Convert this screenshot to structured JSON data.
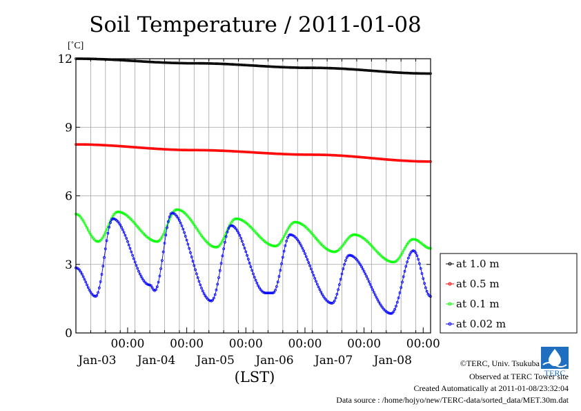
{
  "chart_data": {
    "type": "line",
    "title": "Soil Temperature / 2011-01-08",
    "ylabel": "[˚C]",
    "xlabel": "(LST)",
    "ylim": [
      0,
      12
    ],
    "yticks": [
      0,
      3,
      6,
      9,
      12
    ],
    "xlim_days": [
      "2011-01-02 03:00",
      "2011-01-08 03:00"
    ],
    "xticks": [
      {
        "time": "00:00",
        "date": "Jan-03"
      },
      {
        "time": "00:00",
        "date": "Jan-04"
      },
      {
        "time": "00:00",
        "date": "Jan-05"
      },
      {
        "time": "00:00",
        "date": "Jan-06"
      },
      {
        "time": "00:00",
        "date": "Jan-07"
      },
      {
        "time": "00:00",
        "date": "Jan-08"
      }
    ],
    "grid": true,
    "legend_placement": "right",
    "series": [
      {
        "name": "at 1.0 m",
        "color": "#000000",
        "points": [
          [
            "2011-01-02 03:00",
            12.0
          ],
          [
            "2011-01-04 03:00",
            11.8
          ],
          [
            "2011-01-06 03:00",
            11.6
          ],
          [
            "2011-01-08 03:00",
            11.35
          ]
        ]
      },
      {
        "name": "at 0.5 m",
        "color": "#ff0000",
        "points": [
          [
            "2011-01-02 03:00",
            8.25
          ],
          [
            "2011-01-04 03:00",
            8.0
          ],
          [
            "2011-01-06 03:00",
            7.8
          ],
          [
            "2011-01-08 03:00",
            7.5
          ]
        ]
      },
      {
        "name": "at 0.1 m",
        "color": "#00ff00",
        "points": [
          [
            "2011-01-02 03:00",
            5.2
          ],
          [
            "2011-01-02 12:00",
            4.0
          ],
          [
            "2011-01-02 20:00",
            5.3
          ],
          [
            "2011-01-03 12:00",
            4.0
          ],
          [
            "2011-01-03 20:00",
            5.4
          ],
          [
            "2011-01-04 12:00",
            3.75
          ],
          [
            "2011-01-04 20:00",
            5.0
          ],
          [
            "2011-01-05 12:00",
            3.8
          ],
          [
            "2011-01-05 20:00",
            4.85
          ],
          [
            "2011-01-06 12:00",
            3.55
          ],
          [
            "2011-01-06 20:00",
            4.3
          ],
          [
            "2011-01-07 12:00",
            3.1
          ],
          [
            "2011-01-07 20:00",
            4.1
          ],
          [
            "2011-01-08 03:00",
            3.7
          ]
        ]
      },
      {
        "name": "at 0.02 m",
        "color": "#0000ff",
        "points": [
          [
            "2011-01-02 03:00",
            2.85
          ],
          [
            "2011-01-02 11:00",
            1.6
          ],
          [
            "2011-01-02 18:00",
            5.0
          ],
          [
            "2011-01-03 09:00",
            2.1
          ],
          [
            "2011-01-03 11:00",
            1.85
          ],
          [
            "2011-01-03 18:00",
            5.25
          ],
          [
            "2011-01-04 10:00",
            1.4
          ],
          [
            "2011-01-04 18:00",
            4.7
          ],
          [
            "2011-01-05 08:00",
            1.75
          ],
          [
            "2011-01-05 11:00",
            1.75
          ],
          [
            "2011-01-05 18:00",
            4.3
          ],
          [
            "2011-01-06 11:00",
            1.3
          ],
          [
            "2011-01-06 18:00",
            3.4
          ],
          [
            "2011-01-07 11:00",
            0.85
          ],
          [
            "2011-01-07 20:00",
            3.6
          ],
          [
            "2011-01-08 03:00",
            1.6
          ]
        ]
      }
    ]
  },
  "footer": {
    "copyright": "©TERC, Univ. Tsukuba",
    "observed": "Observed at TERC Tower site",
    "created": "Created Automatically at 2011-01-08/23:32:04",
    "source": "Data source : /home/hojyo/new/TERC-data/sorted_data/MET.30m.dat",
    "logo_text": "TERC"
  }
}
